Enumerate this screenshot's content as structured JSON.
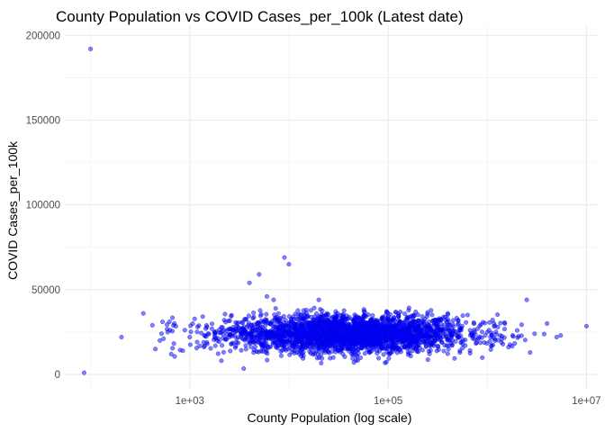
{
  "chart_data": {
    "type": "scatter",
    "title": "County Population vs COVID Cases_per_100k (Latest date)",
    "xlabel": "County Population (log scale)",
    "ylabel": "COVID Cases_per_100k",
    "x_scale": "log10",
    "xlim": [
      55,
      13000000
    ],
    "ylim": [
      -9000,
      206000
    ],
    "x_ticks": [
      {
        "value": 1000,
        "label": "1e+03"
      },
      {
        "value": 100000,
        "label": "1e+05"
      },
      {
        "value": 10000000,
        "label": "1e+07"
      }
    ],
    "x_minor_gridlines": [
      100,
      10000,
      1000000
    ],
    "y_ticks": [
      {
        "value": 0,
        "label": "0"
      },
      {
        "value": 50000,
        "label": "50000"
      },
      {
        "value": 100000,
        "label": "100000"
      },
      {
        "value": 150000,
        "label": "150000"
      },
      {
        "value": 200000,
        "label": "200000"
      }
    ],
    "y_minor_gridlines": [
      25000,
      75000,
      125000,
      175000
    ],
    "grid": true,
    "point_color": "#0000ff",
    "point_opacity": 0.5,
    "series": [
      {
        "x": [
          86,
          100,
          205,
          340,
          420,
          450,
          500,
          520,
          600,
          650,
          700,
          850,
          1000,
          1200,
          1500,
          1800,
          1900,
          2200,
          2500,
          3000,
          3500,
          3800,
          4000,
          4500,
          5000,
          5200,
          6000,
          6500,
          7000,
          8000,
          9000,
          9500,
          10000,
          11000,
          12000,
          13000,
          15000,
          16000,
          18000,
          20000,
          22000,
          25000,
          28000,
          30000,
          35000,
          40000,
          45000,
          50000,
          55000,
          60000,
          70000,
          80000,
          90000,
          100000,
          120000,
          150000,
          180000,
          200000,
          250000,
          300000,
          350000,
          400000,
          500000,
          600000,
          700000,
          800000,
          1000000,
          1200000,
          1500000,
          1800000,
          2000000,
          2500000,
          2700000,
          3000000,
          4000000,
          5000000,
          5500000,
          10000000
        ],
        "y": [
          1000,
          192000,
          22000,
          36000,
          29000,
          15000,
          20000,
          24000,
          25000,
          12000,
          30000,
          14000,
          22000,
          28000,
          18000,
          24000,
          20000,
          26000,
          22000,
          30000,
          3500,
          28000,
          54000,
          22000,
          59000,
          18000,
          46000,
          30000,
          44000,
          22000,
          69000,
          26000,
          65000,
          28000,
          13000,
          35000,
          38000,
          22000,
          25000,
          44000,
          18000,
          26000,
          10000,
          29000,
          12000,
          22000,
          32000,
          28000,
          20000,
          22000,
          26000,
          30000,
          24000,
          27000,
          22000,
          25000,
          19000,
          26000,
          28000,
          20000,
          28000,
          36000,
          23000,
          17000,
          24000,
          27000,
          25000,
          20000,
          30000,
          23000,
          26000,
          44000,
          13000,
          24000,
          30000,
          22000,
          23000,
          28500
        ]
      }
    ],
    "cloud": {
      "log_x_range": [
        2.7,
        6.7
      ],
      "log_x_center": 4.6,
      "log_x_sd": 0.6,
      "y_mean": 24000,
      "y_sd": 5500,
      "count": 2700
    }
  }
}
